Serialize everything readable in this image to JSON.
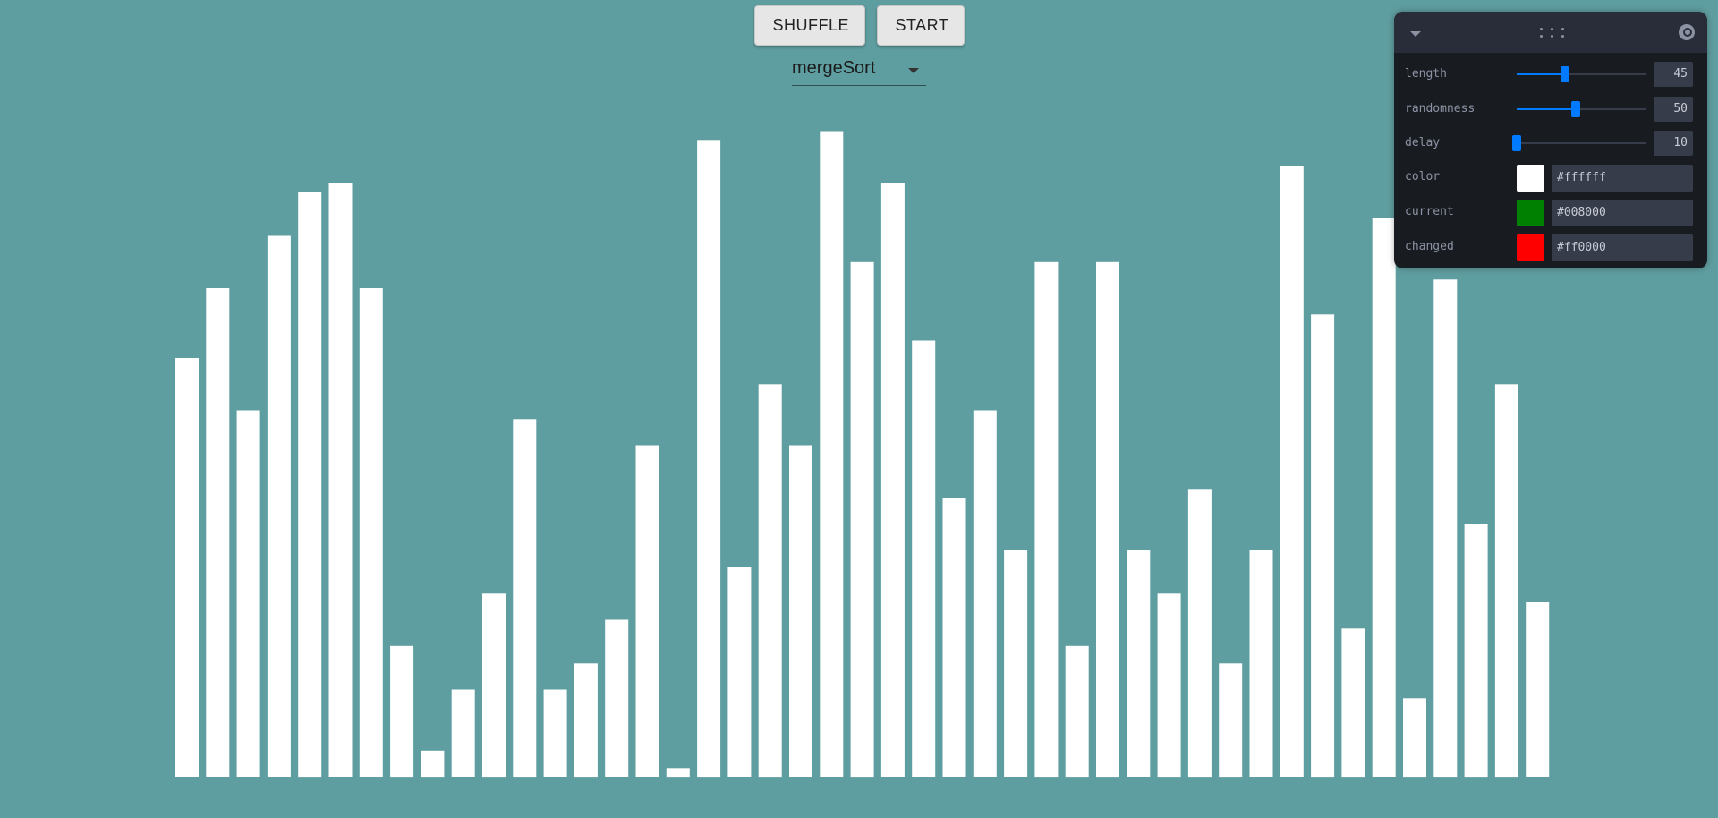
{
  "toolbar": {
    "shuffle_label": "SHUFFLE",
    "start_label": "START"
  },
  "algorithm_select": {
    "value": "mergeSort"
  },
  "controls": {
    "length": {
      "label": "length",
      "value": 45,
      "min": 0,
      "max": 120
    },
    "randomness": {
      "label": "randomness",
      "value": 50,
      "min": 0,
      "max": 110
    },
    "delay": {
      "label": "delay",
      "value": 10,
      "min": 10,
      "max": 500
    },
    "color": {
      "label": "color",
      "value": "#ffffff"
    },
    "current": {
      "label": "current",
      "value": "#008000"
    },
    "changed": {
      "label": "changed",
      "value": "#ff0000"
    }
  },
  "chart_data": {
    "type": "bar",
    "bar_color": "#ffffff",
    "values": [
      48,
      56,
      42,
      62,
      67,
      68,
      56,
      15,
      3,
      10,
      21,
      41,
      10,
      13,
      18,
      38,
      1,
      73,
      24,
      45,
      38,
      74,
      59,
      68,
      50,
      32,
      42,
      26,
      59,
      15,
      59,
      26,
      21,
      33,
      13,
      26,
      70,
      53,
      17,
      64,
      9,
      57,
      29,
      45,
      20
    ]
  }
}
